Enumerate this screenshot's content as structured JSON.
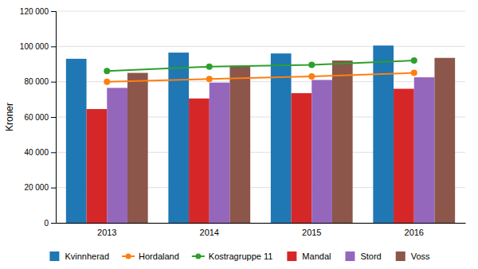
{
  "chart_data": {
    "type": "bar",
    "categories": [
      "2013",
      "2014",
      "2015",
      "2016"
    ],
    "series": [
      {
        "name": "Kvinnherad",
        "type": "bar",
        "values": [
          93000,
          96500,
          96000,
          100500
        ]
      },
      {
        "name": "Hordaland",
        "type": "line",
        "marker": "circle",
        "values": [
          80000,
          81500,
          83000,
          85000
        ]
      },
      {
        "name": "Kostragruppe 11",
        "type": "line",
        "marker": "circle",
        "values": [
          86000,
          88500,
          89500,
          92000
        ]
      },
      {
        "name": "Mandal",
        "type": "bar",
        "values": [
          64500,
          70500,
          73500,
          76000
        ]
      },
      {
        "name": "Stord",
        "type": "bar",
        "values": [
          76500,
          79500,
          81000,
          82500
        ]
      },
      {
        "name": "Voss",
        "type": "bar",
        "values": [
          85000,
          89000,
          92000,
          93500
        ]
      }
    ],
    "y_label": "Kroner",
    "ylim": [
      0,
      120000
    ],
    "yticks": [
      0,
      {
        "value": 20000,
        "label": "20 000"
      },
      {
        "value": 40000,
        "label": "40 000"
      },
      {
        "value": 60000,
        "label": "60 000"
      },
      {
        "value": 80000,
        "label": "80 000"
      },
      {
        "value": 100000,
        "label": "100 000"
      },
      {
        "value": 120000,
        "label": "120 000"
      }
    ],
    "grid": true,
    "legend": "bottom"
  }
}
